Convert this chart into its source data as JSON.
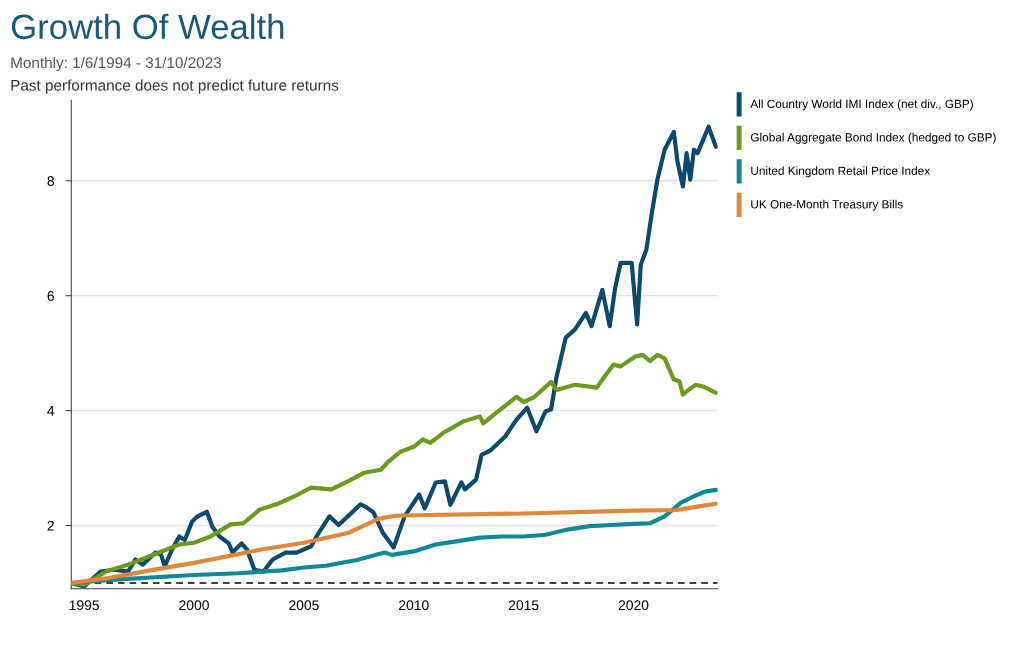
{
  "chart_data": {
    "type": "line",
    "title": "Growth Of Wealth",
    "subtitle": "Monthly: 1/6/1994 - 31/10/2023",
    "annotations": [
      "Past performance does not predict future returns"
    ],
    "xlim": [
      "1994-06",
      "2023-10-31"
    ],
    "xticks": [
      {
        "value": "1995-01-01",
        "label": "1995"
      },
      {
        "value": "2000-01-01",
        "label": "2000"
      },
      {
        "value": "2005-01-01",
        "label": "2005"
      },
      {
        "value": "2010-01-01",
        "label": "2010"
      },
      {
        "value": "2015-01-01",
        "label": "2015"
      },
      {
        "value": "2020-01-01",
        "label": "2020"
      }
    ],
    "ylim": [
      0.9,
      9.4
    ],
    "yticks": [
      2,
      4,
      6,
      8
    ],
    "grid": "y",
    "legend": "right",
    "marker": "none",
    "line_style": "solid",
    "ref_lines": [
      {
        "axis": "y",
        "value": 1,
        "label": null,
        "color": "#000000",
        "line_style": "dashed"
      }
    ],
    "series": [
      {
        "name": "All Country World IMI Index (net div., GBP)",
        "color": "#0b4a6b",
        "x": [
          "1994-06",
          "1995-01",
          "1995-10",
          "1996-05",
          "1997-01",
          "1997-05",
          "1997-09",
          "1998-04",
          "1998-07",
          "1998-09",
          "1999-01",
          "1999-05",
          "1999-08",
          "1999-12",
          "2000-03",
          "2000-08",
          "2000-11",
          "2001-03",
          "2001-08",
          "2001-10",
          "2002-03",
          "2002-06",
          "2002-10",
          "2003-03",
          "2003-08",
          "2004-03",
          "2004-09",
          "2005-05",
          "2005-09",
          "2006-03",
          "2006-08",
          "2007-03",
          "2007-08",
          "2007-11",
          "2008-03",
          "2008-08",
          "2009-02",
          "2009-08",
          "2010-04",
          "2010-07",
          "2011-01",
          "2011-06",
          "2011-09",
          "2012-03",
          "2012-05",
          "2012-11",
          "2013-02",
          "2013-07",
          "2014-03",
          "2014-09",
          "2015-03",
          "2015-08",
          "2016-01",
          "2016-04",
          "2016-07",
          "2016-12",
          "2017-05",
          "2017-11",
          "2018-02",
          "2018-08",
          "2018-12",
          "2019-03",
          "2019-06",
          "2019-12",
          "2020-03",
          "2020-05",
          "2020-08",
          "2020-11",
          "2021-02",
          "2021-06",
          "2021-11",
          "2022-01",
          "2022-04",
          "2022-06",
          "2022-08",
          "2022-10",
          "2022-12",
          "2023-06",
          "2023-10"
        ],
        "values": [
          1.0,
          0.94,
          1.2,
          1.23,
          1.2,
          1.41,
          1.32,
          1.53,
          1.5,
          1.29,
          1.58,
          1.81,
          1.75,
          2.07,
          2.16,
          2.24,
          1.98,
          1.81,
          1.69,
          1.53,
          1.69,
          1.58,
          1.23,
          1.2,
          1.41,
          1.53,
          1.53,
          1.64,
          1.87,
          2.16,
          2.01,
          2.22,
          2.37,
          2.32,
          2.23,
          1.88,
          1.62,
          2.16,
          2.54,
          2.3,
          2.75,
          2.77,
          2.36,
          2.75,
          2.63,
          2.8,
          3.23,
          3.31,
          3.55,
          3.84,
          4.05,
          3.64,
          3.99,
          4.02,
          4.59,
          5.27,
          5.41,
          5.7,
          5.47,
          6.1,
          5.47,
          6.13,
          6.57,
          6.57,
          5.5,
          6.54,
          6.8,
          7.44,
          8.02,
          8.54,
          8.85,
          8.33,
          7.9,
          8.48,
          8.02,
          8.54,
          8.48,
          8.94,
          8.59
        ]
      },
      {
        "name": "Global Aggregate Bond Index (hedged to GBP)",
        "color": "#6b9a1f",
        "x": [
          "1994-06",
          "1995-01",
          "1996-01",
          "1997-01",
          "1998-06",
          "1999-05",
          "2000-01",
          "2000-10",
          "2001-09",
          "2002-04",
          "2003-01",
          "2003-10",
          "2004-08",
          "2005-05",
          "2006-04",
          "2007-01",
          "2007-10",
          "2008-07",
          "2008-11",
          "2009-06",
          "2010-01",
          "2010-06",
          "2010-10",
          "2011-05",
          "2011-10",
          "2012-04",
          "2013-01",
          "2013-03",
          "2013-10",
          "2014-09",
          "2015-01",
          "2015-07",
          "2016-04",
          "2016-07",
          "2017-05",
          "2018-05",
          "2018-08",
          "2019-02",
          "2019-06",
          "2020-02",
          "2020-06",
          "2020-10",
          "2021-02",
          "2021-06",
          "2021-11",
          "2022-02",
          "2022-04",
          "2022-07",
          "2022-11",
          "2023-03",
          "2023-10"
        ],
        "values": [
          1.0,
          0.97,
          1.2,
          1.32,
          1.53,
          1.67,
          1.7,
          1.81,
          2.02,
          2.04,
          2.28,
          2.37,
          2.51,
          2.66,
          2.63,
          2.77,
          2.92,
          2.97,
          3.11,
          3.29,
          3.37,
          3.5,
          3.44,
          3.61,
          3.7,
          3.81,
          3.9,
          3.78,
          3.96,
          4.24,
          4.15,
          4.24,
          4.5,
          4.36,
          4.45,
          4.4,
          4.54,
          4.8,
          4.77,
          4.94,
          4.97,
          4.86,
          4.97,
          4.91,
          4.54,
          4.51,
          4.28,
          4.36,
          4.45,
          4.42,
          4.31
        ]
      },
      {
        "name": "United Kingdom Retail Price Index",
        "color": "#0f8a94",
        "x": [
          "1994-06",
          "1996-01",
          "2000-01",
          "2002-01",
          "2004-01",
          "2005-01",
          "2006-01",
          "2007-06",
          "2008-09",
          "2009-01",
          "2010-01",
          "2011-01",
          "2012-01",
          "2013-01",
          "2014-01",
          "2015-01",
          "2016-01",
          "2017-01",
          "2018-01",
          "2019-01",
          "2020-01",
          "2020-10",
          "2021-06",
          "2022-03",
          "2022-10",
          "2023-04",
          "2023-10"
        ],
        "values": [
          1.0,
          1.05,
          1.14,
          1.17,
          1.22,
          1.27,
          1.3,
          1.4,
          1.53,
          1.49,
          1.55,
          1.67,
          1.73,
          1.79,
          1.81,
          1.81,
          1.84,
          1.93,
          1.99,
          2.01,
          2.03,
          2.04,
          2.16,
          2.4,
          2.51,
          2.59,
          2.62
        ]
      },
      {
        "name": "UK One-Month Treasury Bills",
        "color": "#e0883a",
        "x": [
          "1994-06",
          "1996-01",
          "1998-01",
          "2000-01",
          "2002-01",
          "2003-01",
          "2005-01",
          "2007-01",
          "2008-06",
          "2009-03",
          "2010-01",
          "2015-01",
          "2020-01",
          "2022-01",
          "2022-10",
          "2023-10"
        ],
        "values": [
          1.0,
          1.08,
          1.22,
          1.35,
          1.5,
          1.58,
          1.7,
          1.87,
          2.12,
          2.17,
          2.18,
          2.21,
          2.26,
          2.27,
          2.32,
          2.38
        ]
      }
    ]
  }
}
